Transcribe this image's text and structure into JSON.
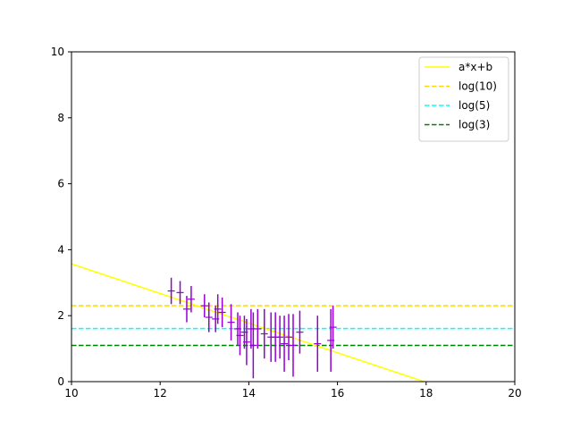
{
  "chart_data": {
    "type": "scatter",
    "title": "",
    "xlabel": "",
    "ylabel": "",
    "xlim": [
      10,
      20
    ],
    "ylim": [
      0,
      10
    ],
    "xticks": [
      10,
      12,
      14,
      16,
      18,
      20
    ],
    "yticks": [
      0,
      2,
      4,
      6,
      8,
      10
    ],
    "grid": false,
    "legend_position": "top-right",
    "colors": {
      "fit": "#ffff00",
      "log10": "#ffd700",
      "log5": "#00ffff",
      "log3": "#008000",
      "points": "#9400d3"
    },
    "fit_line": {
      "name": "a*x+b",
      "x": [
        10,
        17.95
      ],
      "y": [
        3.57,
        0.0
      ]
    },
    "hlines": [
      {
        "name": "log(10)",
        "y": 2.3026,
        "style": "dashed",
        "color_key": "log10"
      },
      {
        "name": "log(5)",
        "y": 1.6094,
        "style": "dashed",
        "color_key": "log5"
      },
      {
        "name": "log(3)",
        "y": 1.0986,
        "style": "dashed",
        "color_key": "log3"
      }
    ],
    "points": [
      {
        "x": 12.25,
        "y": 2.75,
        "err": 0.4
      },
      {
        "x": 12.45,
        "y": 2.7,
        "err": 0.35
      },
      {
        "x": 12.6,
        "y": 2.2,
        "err": 0.4
      },
      {
        "x": 12.7,
        "y": 2.5,
        "err": 0.4
      },
      {
        "x": 13.0,
        "y": 2.3,
        "err": 0.35
      },
      {
        "x": 13.1,
        "y": 1.95,
        "err": 0.45
      },
      {
        "x": 13.25,
        "y": 1.9,
        "err": 0.4
      },
      {
        "x": 13.3,
        "y": 2.2,
        "err": 0.45
      },
      {
        "x": 13.4,
        "y": 2.1,
        "err": 0.45
      },
      {
        "x": 13.6,
        "y": 1.8,
        "err": 0.55
      },
      {
        "x": 13.75,
        "y": 1.6,
        "err": 0.5
      },
      {
        "x": 13.8,
        "y": 1.4,
        "err": 0.6
      },
      {
        "x": 13.9,
        "y": 1.5,
        "err": 0.5
      },
      {
        "x": 13.95,
        "y": 1.2,
        "err": 0.7
      },
      {
        "x": 14.05,
        "y": 1.6,
        "err": 0.6
      },
      {
        "x": 14.1,
        "y": 1.1,
        "err": 1.0
      },
      {
        "x": 14.2,
        "y": 1.6,
        "err": 0.6
      },
      {
        "x": 14.35,
        "y": 1.45,
        "err": 0.75
      },
      {
        "x": 14.5,
        "y": 1.35,
        "err": 0.75
      },
      {
        "x": 14.6,
        "y": 1.35,
        "err": 0.75
      },
      {
        "x": 14.7,
        "y": 1.35,
        "err": 0.65
      },
      {
        "x": 14.8,
        "y": 1.15,
        "err": 0.85
      },
      {
        "x": 14.9,
        "y": 1.35,
        "err": 0.7
      },
      {
        "x": 15.0,
        "y": 1.1,
        "err": 0.95
      },
      {
        "x": 15.15,
        "y": 1.5,
        "err": 0.65
      },
      {
        "x": 15.55,
        "y": 1.15,
        "err": 0.85
      },
      {
        "x": 15.85,
        "y": 1.25,
        "err": 0.95
      },
      {
        "x": 15.9,
        "y": 1.65,
        "err": 0.65
      }
    ]
  }
}
